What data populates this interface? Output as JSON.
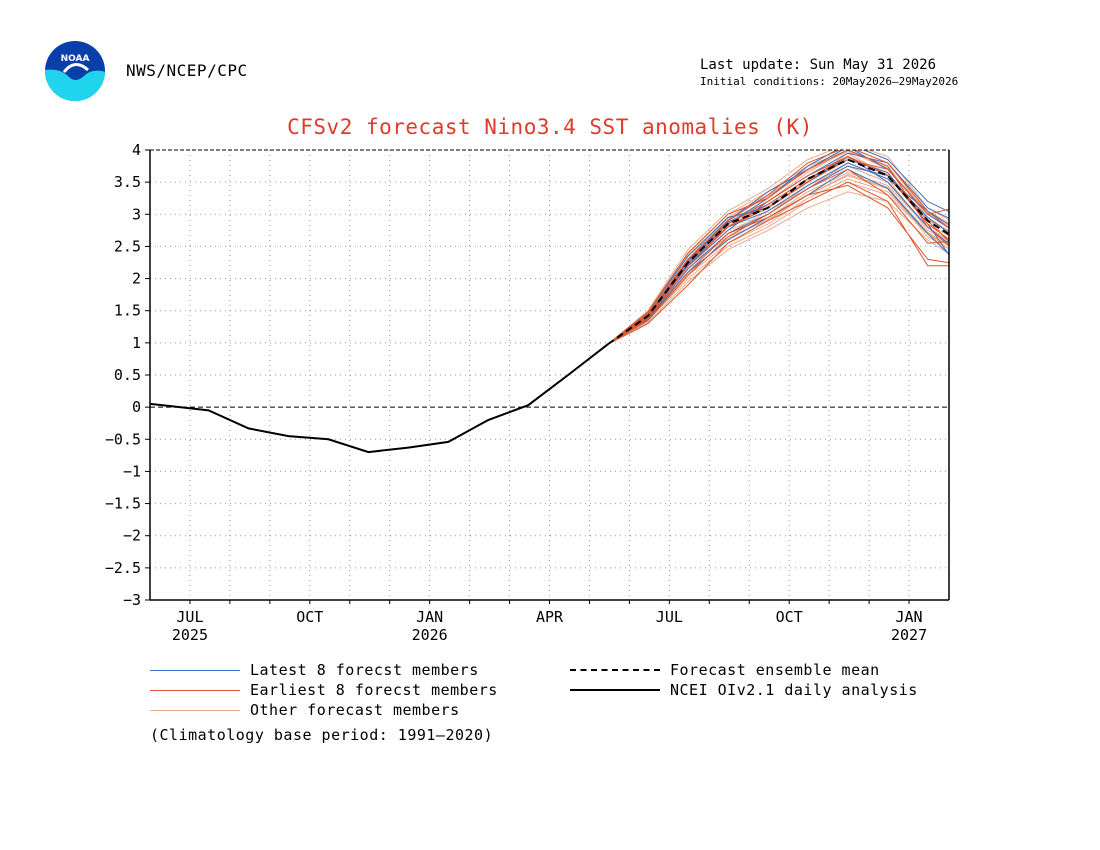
{
  "header": {
    "agency": "NWS/NCEP/CPC",
    "last_update": "Last update: Sun May 31 2026",
    "initial_conditions": "Initial conditions: 20May2026—29May2026"
  },
  "logo": {
    "icon": "noaa-logo",
    "text": "NOAA"
  },
  "title": "CFSv2 forecast Nino3.4 SST anomalies (K)",
  "legend": {
    "latest_members": "Latest 8 forecst members",
    "earliest_members": "Earliest 8 forecst members",
    "other_members": "Other forecast members",
    "ensemble_mean": "Forecast ensemble mean",
    "analysis": "NCEI OIv2.1 daily analysis"
  },
  "climatology_note": "(Climatology base period: 1991—2020)",
  "colors": {
    "title": "#e03a2c",
    "latest": "#3d6fc4",
    "earliest": "#e0562a",
    "other": "#e8a98a",
    "analysis": "#000000",
    "mean": "#000000"
  },
  "chart_data": {
    "type": "line",
    "x_unit": "month",
    "xlim": [
      "2025-06",
      "2027-02"
    ],
    "ylim": [
      -3,
      4
    ],
    "yticks": [
      "4",
      "3.5",
      "3",
      "2.5",
      "2",
      "1.5",
      "1",
      "0.5",
      "0",
      "−0.5",
      "−1",
      "−1.5",
      "−2",
      "−2.5",
      "−3"
    ],
    "xticks": [
      {
        "month": "2025-07",
        "label": "JUL",
        "year": "2025"
      },
      {
        "month": "2025-10",
        "label": "OCT",
        "year": ""
      },
      {
        "month": "2026-01",
        "label": "JAN",
        "year": "2026"
      },
      {
        "month": "2026-04",
        "label": "APR",
        "year": ""
      },
      {
        "month": "2026-07",
        "label": "JUL",
        "year": ""
      },
      {
        "month": "2026-10",
        "label": "OCT",
        "year": ""
      },
      {
        "month": "2027-01",
        "label": "JAN",
        "year": "2027"
      }
    ],
    "grid": true,
    "zero_line": true,
    "series": [
      {
        "name": "NCEI OIv2.1 daily analysis",
        "style": "solid",
        "x": [
          "2025-06-01",
          "2025-06-15",
          "2025-07-15",
          "2025-08-15",
          "2025-09-15",
          "2025-10-15",
          "2025-11-15",
          "2025-12-15",
          "2026-01-15",
          "2026-02-15",
          "2026-03-15",
          "2026-04-15",
          "2026-05-15"
        ],
        "y": [
          0.05,
          0.02,
          -0.05,
          -0.33,
          -0.45,
          -0.5,
          -0.7,
          -0.63,
          -0.54,
          -0.2,
          0.03,
          0.5,
          0.98
        ]
      },
      {
        "name": "Forecast ensemble mean",
        "style": "dashed",
        "x": [
          "2026-05-15",
          "2026-06-15",
          "2026-07-15",
          "2026-08-15",
          "2026-09-15",
          "2026-10-15",
          "2026-11-15",
          "2026-12-15",
          "2027-01-15",
          "2027-02-15"
        ],
        "y": [
          0.98,
          1.42,
          2.25,
          2.85,
          3.1,
          3.55,
          3.85,
          3.6,
          2.9,
          2.5
        ]
      }
    ],
    "ensemble": {
      "x": [
        "2026-05-15",
        "2026-06-15",
        "2026-07-15",
        "2026-08-15",
        "2026-09-15",
        "2026-10-15",
        "2026-11-15",
        "2026-12-15",
        "2027-01-15",
        "2027-02-15"
      ],
      "latest": [
        [
          0.98,
          1.45,
          2.3,
          2.9,
          3.35,
          3.7,
          4.05,
          3.7,
          3.0,
          2.6
        ],
        [
          0.98,
          1.4,
          2.2,
          2.75,
          3.2,
          3.6,
          3.95,
          3.8,
          3.1,
          2.8
        ],
        [
          0.98,
          1.48,
          2.35,
          2.95,
          3.1,
          3.5,
          3.9,
          3.5,
          2.8,
          2.3
        ],
        [
          0.98,
          1.38,
          2.15,
          2.7,
          3.0,
          3.4,
          3.75,
          3.6,
          2.95,
          2.5
        ],
        [
          0.98,
          1.42,
          2.25,
          2.85,
          3.25,
          3.75,
          4.1,
          3.85,
          3.2,
          2.9
        ],
        [
          0.98,
          1.36,
          2.1,
          2.6,
          2.95,
          3.3,
          3.7,
          3.4,
          2.7,
          2.1
        ],
        [
          0.98,
          1.44,
          2.28,
          2.88,
          3.15,
          3.55,
          3.85,
          3.65,
          2.85,
          1.95
        ],
        [
          0.98,
          1.41,
          2.22,
          2.8,
          3.05,
          3.45,
          3.8,
          3.55,
          3.05,
          2.65
        ]
      ],
      "earliest": [
        [
          0.98,
          1.4,
          2.2,
          2.8,
          3.1,
          3.5,
          3.85,
          3.7,
          3.0,
          3.15
        ],
        [
          0.98,
          1.45,
          2.3,
          2.9,
          3.3,
          3.8,
          4.05,
          3.8,
          3.05,
          2.55
        ],
        [
          0.98,
          1.38,
          2.1,
          2.7,
          2.95,
          3.3,
          3.45,
          3.1,
          2.3,
          2.2
        ],
        [
          0.98,
          1.42,
          2.25,
          2.85,
          3.2,
          3.6,
          3.9,
          3.6,
          2.9,
          2.3
        ],
        [
          0.98,
          1.35,
          2.05,
          2.65,
          3.0,
          3.4,
          3.7,
          3.3,
          2.55,
          2.6
        ],
        [
          0.98,
          1.48,
          2.4,
          3.0,
          3.25,
          3.7,
          4.0,
          3.75,
          2.8,
          2.25
        ],
        [
          0.98,
          1.3,
          1.9,
          2.55,
          2.9,
          3.2,
          3.5,
          3.2,
          2.2,
          2.2
        ],
        [
          0.98,
          1.44,
          2.3,
          2.8,
          3.15,
          3.55,
          3.9,
          3.6,
          2.85,
          2.4
        ]
      ],
      "other": [
        [
          0.98,
          1.35,
          2.0,
          2.5,
          2.8,
          3.2,
          3.5,
          3.3,
          2.7,
          2.35
        ],
        [
          0.98,
          1.5,
          2.45,
          3.05,
          3.4,
          3.85,
          4.1,
          3.9,
          3.1,
          2.75
        ],
        [
          0.98,
          1.4,
          2.2,
          2.65,
          2.9,
          3.3,
          3.6,
          3.4,
          2.65,
          2.3
        ],
        [
          0.98,
          1.45,
          2.35,
          2.9,
          3.2,
          3.65,
          4.0,
          3.75,
          2.95,
          2.55
        ],
        [
          0.98,
          1.32,
          1.95,
          2.45,
          2.75,
          3.1,
          3.35,
          3.2,
          2.6,
          2.2
        ],
        [
          0.98,
          1.42,
          2.25,
          2.8,
          3.1,
          3.5,
          3.95,
          3.6,
          2.85,
          2.5
        ],
        [
          0.98,
          1.38,
          2.15,
          2.7,
          3.05,
          3.4,
          3.8,
          3.55,
          2.75,
          2.45
        ],
        [
          0.98,
          1.46,
          2.3,
          2.95,
          3.3,
          3.7,
          4.05,
          3.8,
          3.0,
          2.65
        ],
        [
          0.98,
          1.37,
          2.1,
          2.6,
          2.95,
          3.35,
          3.65,
          3.45,
          2.8,
          2.35
        ],
        [
          0.98,
          1.44,
          2.28,
          2.85,
          3.15,
          3.55,
          3.9,
          3.65,
          2.9,
          2.6
        ],
        [
          0.98,
          1.34,
          2.05,
          2.55,
          2.85,
          3.25,
          3.55,
          3.35,
          2.7,
          2.25
        ],
        [
          0.98,
          1.48,
          2.38,
          3.0,
          3.35,
          3.75,
          4.0,
          3.7,
          3.05,
          2.7
        ],
        [
          0.98,
          1.4,
          2.18,
          2.75,
          3.0,
          3.45,
          3.75,
          3.5,
          2.8,
          2.4
        ],
        [
          0.98,
          1.43,
          2.22,
          2.82,
          3.12,
          3.52,
          3.88,
          3.62,
          2.92,
          2.58
        ],
        [
          0.98,
          1.36,
          2.08,
          2.62,
          2.92,
          3.3,
          3.62,
          3.42,
          2.72,
          2.32
        ],
        [
          0.98,
          1.47,
          2.35,
          2.92,
          3.28,
          3.68,
          3.98,
          3.72,
          3.02,
          2.68
        ]
      ]
    }
  }
}
